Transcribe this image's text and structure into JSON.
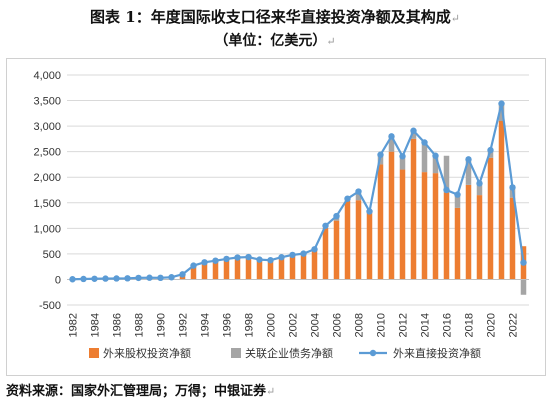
{
  "header": {
    "title_line1": "图表 1：年度国际收支口径来华直接投资净额及其构成",
    "title_line2": "（单位：亿美元）"
  },
  "footer": {
    "source": "资料来源：国家外汇管理局；万得；中银证券"
  },
  "colors": {
    "equity": "#ED7D31",
    "debt": "#A5A5A5",
    "total": "#5B9BD5",
    "grid": "#D9D9D9"
  },
  "chart_data": {
    "type": "bar",
    "subtype": "stacked bar + line",
    "x": [
      1982,
      1983,
      1984,
      1985,
      1986,
      1987,
      1988,
      1989,
      1990,
      1991,
      1992,
      1993,
      1994,
      1995,
      1996,
      1997,
      1998,
      1999,
      2000,
      2001,
      2002,
      2003,
      2004,
      2005,
      2006,
      2007,
      2008,
      2009,
      2010,
      2011,
      2012,
      2013,
      2014,
      2015,
      2016,
      2017,
      2018,
      2019,
      2020,
      2021,
      2022,
      2023
    ],
    "x_tick_labels": [
      "1982",
      "1984",
      "1986",
      "1988",
      "1990",
      "1992",
      "1994",
      "1996",
      "1998",
      "2000",
      "2002",
      "2004",
      "2006",
      "2008",
      "2010",
      "2012",
      "2014",
      "2016",
      "2018",
      "2020",
      "2022"
    ],
    "series": [
      {
        "name": "外来股权投资净额",
        "kind": "bar",
        "values": [
          4,
          9,
          13,
          17,
          19,
          22,
          30,
          34,
          32,
          43,
          100,
          271,
          335,
          367,
          401,
          429,
          438,
          388,
          377,
          435,
          480,
          505,
          590,
          1010,
          1150,
          1540,
          1550,
          1330,
          2250,
          2500,
          2150,
          2750,
          2100,
          2080,
          1700,
          1400,
          1850,
          1650,
          2380,
          3100,
          1600,
          650
        ]
      },
      {
        "name": "关联企业债务净额",
        "kind": "bar",
        "values": [
          0,
          0,
          0,
          0,
          0,
          0,
          0,
          0,
          0,
          0,
          0,
          0,
          0,
          0,
          0,
          0,
          0,
          0,
          0,
          0,
          0,
          0,
          0,
          0,
          90,
          40,
          160,
          0,
          190,
          300,
          260,
          180,
          570,
          340,
          720,
          280,
          500,
          250,
          150,
          340,
          200,
          -300
        ]
      },
      {
        "name": "外来直接投资净额",
        "kind": "line",
        "values": [
          4,
          9,
          13,
          17,
          19,
          22,
          30,
          34,
          32,
          43,
          100,
          271,
          335,
          367,
          401,
          429,
          438,
          388,
          377,
          435,
          480,
          505,
          590,
          1050,
          1240,
          1580,
          1720,
          1330,
          2440,
          2800,
          2410,
          2910,
          2680,
          2420,
          1750,
          1660,
          2350,
          1880,
          2530,
          3440,
          1800,
          330
        ]
      }
    ],
    "y_ticks": [
      "-500",
      "0",
      "500",
      "1,000",
      "1,500",
      "2,000",
      "2,500",
      "3,000",
      "3,500",
      "4,000"
    ],
    "ylim": [
      -500,
      4000
    ],
    "grid": "horizontal",
    "legend": "bottom"
  }
}
